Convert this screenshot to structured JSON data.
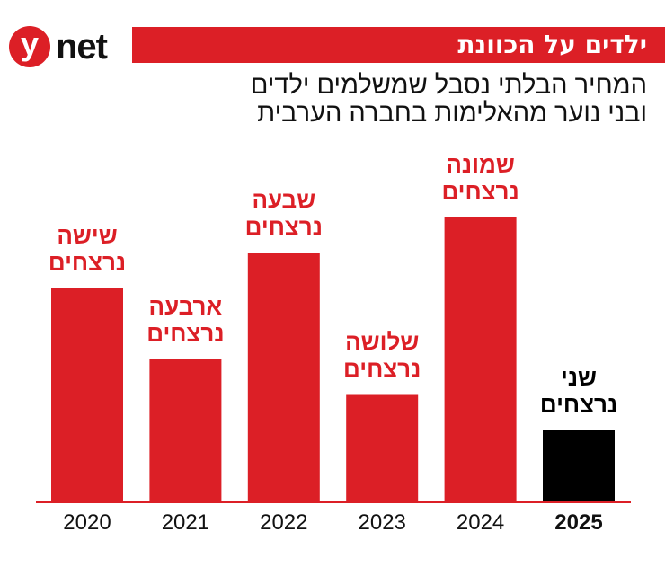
{
  "header": {
    "logo_text": "ynet",
    "title": "ילדים על הכוונת",
    "subtitle_lines": [
      "המחיר הבלתי נסבל שמשלמים ילדים",
      "ובני נוער מהאלימות בחברה הערבית"
    ]
  },
  "chart_data": {
    "type": "bar",
    "categories": [
      "2020",
      "2021",
      "2022",
      "2023",
      "2024",
      "2025"
    ],
    "values": [
      6,
      4,
      7,
      3,
      8,
      2
    ],
    "data_labels": [
      [
        "שישה",
        "נרצחים"
      ],
      [
        "ארבעה",
        "נרצחים"
      ],
      [
        "שבעה",
        "נרצחים"
      ],
      [
        "שלושה",
        "נרצחים"
      ],
      [
        "שמונה",
        "נרצחים"
      ],
      [
        "שני",
        "נרצחים"
      ]
    ],
    "colors": [
      "#dc1f26",
      "#dc1f26",
      "#dc1f26",
      "#dc1f26",
      "#dc1f26",
      "#000000"
    ],
    "highlight_category": "2025",
    "axis_color": "#dc1f26",
    "grid": false,
    "title": "",
    "xlabel": "",
    "ylabel": ""
  }
}
